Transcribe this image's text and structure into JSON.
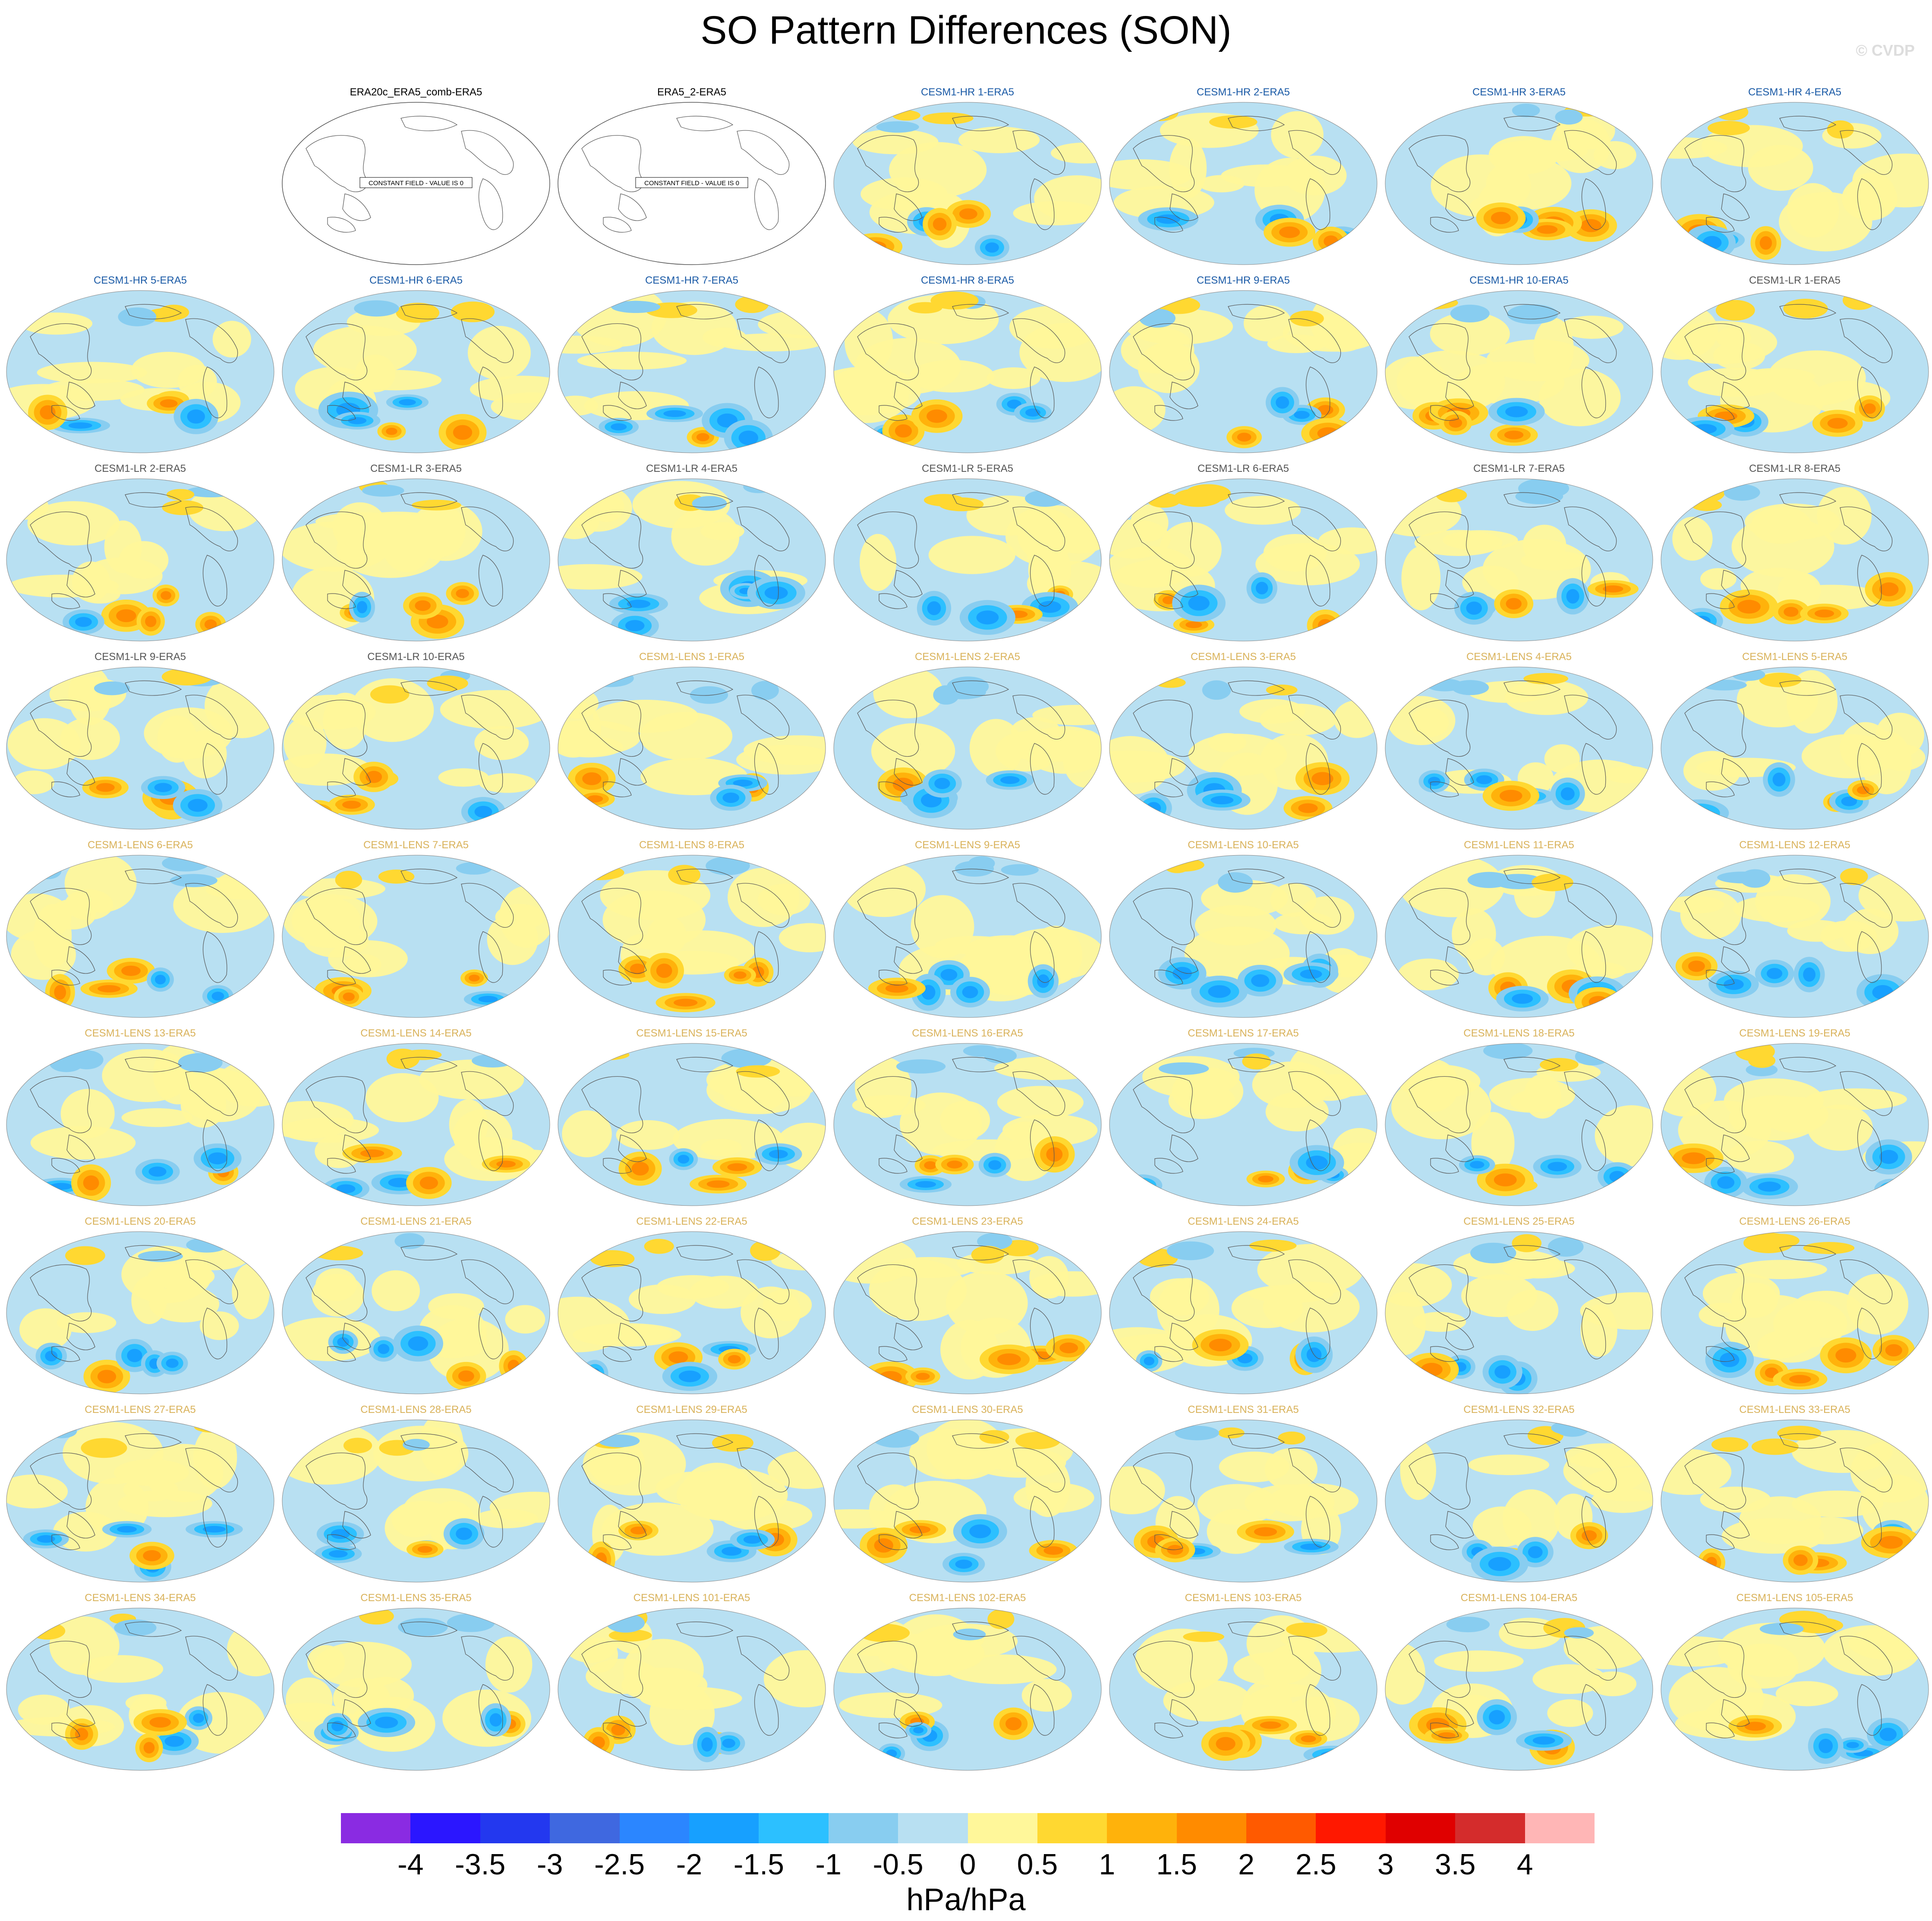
{
  "title": "SO Pattern Differences (SON)",
  "credit": "© CVDP",
  "units": "hPa/hPa",
  "constant_field_label": "CONSTANT FIELD - VALUE IS 0",
  "colorbar": {
    "colors": [
      "#8a2be2",
      "#2b16ff",
      "#2338ef",
      "#3f68e0",
      "#2b86ff",
      "#17a0ff",
      "#2cc0ff",
      "#88cdf0",
      "#b8e0f2",
      "#fff79a",
      "#ffd831",
      "#ffb20b",
      "#ff8b00",
      "#ff5a00",
      "#ff1800",
      "#e00000",
      "#d42c2c",
      "#ffb6b6"
    ],
    "tick_labels": [
      "-4",
      "-3.5",
      "-3",
      "-2.5",
      "-2",
      "-1.5",
      "-1",
      "-0.5",
      "0",
      "0.5",
      "1",
      "1.5",
      "2",
      "2.5",
      "3",
      "3.5",
      "4"
    ]
  },
  "panels": [
    {
      "title": "ERA20c_ERA5_comb-ERA5",
      "group": "obs",
      "constant": true
    },
    {
      "title": "ERA5_2-ERA5",
      "group": "obs",
      "constant": true
    },
    {
      "title": "CESM1-HR 1-ERA5",
      "group": "hr"
    },
    {
      "title": "CESM1-HR 2-ERA5",
      "group": "hr"
    },
    {
      "title": "CESM1-HR 3-ERA5",
      "group": "hr"
    },
    {
      "title": "CESM1-HR 4-ERA5",
      "group": "hr"
    },
    {
      "title": "CESM1-HR 5-ERA5",
      "group": "hr"
    },
    {
      "title": "CESM1-HR 6-ERA5",
      "group": "hr"
    },
    {
      "title": "CESM1-HR 7-ERA5",
      "group": "hr"
    },
    {
      "title": "CESM1-HR 8-ERA5",
      "group": "hr"
    },
    {
      "title": "CESM1-HR 9-ERA5",
      "group": "hr"
    },
    {
      "title": "CESM1-HR 10-ERA5",
      "group": "hr"
    },
    {
      "title": "CESM1-LR 1-ERA5",
      "group": "lr"
    },
    {
      "title": "CESM1-LR 2-ERA5",
      "group": "lr"
    },
    {
      "title": "CESM1-LR 3-ERA5",
      "group": "lr"
    },
    {
      "title": "CESM1-LR 4-ERA5",
      "group": "lr"
    },
    {
      "title": "CESM1-LR 5-ERA5",
      "group": "lr"
    },
    {
      "title": "CESM1-LR 6-ERA5",
      "group": "lr"
    },
    {
      "title": "CESM1-LR 7-ERA5",
      "group": "lr"
    },
    {
      "title": "CESM1-LR 8-ERA5",
      "group": "lr"
    },
    {
      "title": "CESM1-LR 9-ERA5",
      "group": "lr"
    },
    {
      "title": "CESM1-LR 10-ERA5",
      "group": "lr"
    },
    {
      "title": "CESM1-LENS 1-ERA5",
      "group": "lens"
    },
    {
      "title": "CESM1-LENS 2-ERA5",
      "group": "lens"
    },
    {
      "title": "CESM1-LENS 3-ERA5",
      "group": "lens"
    },
    {
      "title": "CESM1-LENS 4-ERA5",
      "group": "lens"
    },
    {
      "title": "CESM1-LENS 5-ERA5",
      "group": "lens"
    },
    {
      "title": "CESM1-LENS 6-ERA5",
      "group": "lens"
    },
    {
      "title": "CESM1-LENS 7-ERA5",
      "group": "lens"
    },
    {
      "title": "CESM1-LENS 8-ERA5",
      "group": "lens"
    },
    {
      "title": "CESM1-LENS 9-ERA5",
      "group": "lens"
    },
    {
      "title": "CESM1-LENS 10-ERA5",
      "group": "lens"
    },
    {
      "title": "CESM1-LENS 11-ERA5",
      "group": "lens"
    },
    {
      "title": "CESM1-LENS 12-ERA5",
      "group": "lens"
    },
    {
      "title": "CESM1-LENS 13-ERA5",
      "group": "lens"
    },
    {
      "title": "CESM1-LENS 14-ERA5",
      "group": "lens"
    },
    {
      "title": "CESM1-LENS 15-ERA5",
      "group": "lens"
    },
    {
      "title": "CESM1-LENS 16-ERA5",
      "group": "lens"
    },
    {
      "title": "CESM1-LENS 17-ERA5",
      "group": "lens"
    },
    {
      "title": "CESM1-LENS 18-ERA5",
      "group": "lens"
    },
    {
      "title": "CESM1-LENS 19-ERA5",
      "group": "lens"
    },
    {
      "title": "CESM1-LENS 20-ERA5",
      "group": "lens"
    },
    {
      "title": "CESM1-LENS 21-ERA5",
      "group": "lens"
    },
    {
      "title": "CESM1-LENS 22-ERA5",
      "group": "lens"
    },
    {
      "title": "CESM1-LENS 23-ERA5",
      "group": "lens"
    },
    {
      "title": "CESM1-LENS 24-ERA5",
      "group": "lens"
    },
    {
      "title": "CESM1-LENS 25-ERA5",
      "group": "lens"
    },
    {
      "title": "CESM1-LENS 26-ERA5",
      "group": "lens"
    },
    {
      "title": "CESM1-LENS 27-ERA5",
      "group": "lens"
    },
    {
      "title": "CESM1-LENS 28-ERA5",
      "group": "lens"
    },
    {
      "title": "CESM1-LENS 29-ERA5",
      "group": "lens"
    },
    {
      "title": "CESM1-LENS 30-ERA5",
      "group": "lens"
    },
    {
      "title": "CESM1-LENS 31-ERA5",
      "group": "lens"
    },
    {
      "title": "CESM1-LENS 32-ERA5",
      "group": "lens"
    },
    {
      "title": "CESM1-LENS 33-ERA5",
      "group": "lens"
    },
    {
      "title": "CESM1-LENS 34-ERA5",
      "group": "lens"
    },
    {
      "title": "CESM1-LENS 35-ERA5",
      "group": "lens"
    },
    {
      "title": "CESM1-LENS 101-ERA5",
      "group": "lens"
    },
    {
      "title": "CESM1-LENS 102-ERA5",
      "group": "lens"
    },
    {
      "title": "CESM1-LENS 103-ERA5",
      "group": "lens"
    },
    {
      "title": "CESM1-LENS 104-ERA5",
      "group": "lens"
    },
    {
      "title": "CESM1-LENS 105-ERA5",
      "group": "lens"
    }
  ]
}
